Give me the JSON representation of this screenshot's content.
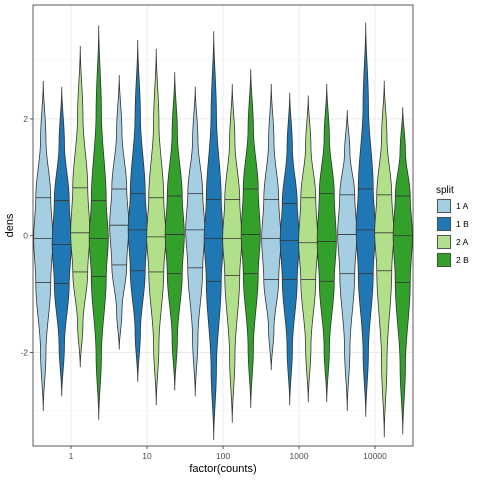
{
  "chart_data": {
    "type": "violin",
    "title": "",
    "xlabel": "factor(counts)",
    "ylabel": "dens",
    "categories": [
      "1",
      "10",
      "100",
      "1000",
      "10000"
    ],
    "ylim": [
      -3.6,
      3.95
    ],
    "y_ticks": [
      -2,
      0,
      2
    ],
    "grid": true,
    "legend": {
      "title": "split",
      "position": "right"
    },
    "series": [
      {
        "name": "1 A",
        "color": "#a6cee3",
        "stats": [
          {
            "min": -3.0,
            "q1": -0.8,
            "median": -0.05,
            "q3": 0.65,
            "max": 2.65
          },
          {
            "min": -1.95,
            "q1": -0.5,
            "median": 0.18,
            "q3": 0.8,
            "max": 2.75
          },
          {
            "min": -2.75,
            "q1": -0.55,
            "median": 0.1,
            "q3": 0.72,
            "max": 2.55
          },
          {
            "min": -2.3,
            "q1": -0.75,
            "median": -0.05,
            "q3": 0.62,
            "max": 2.6
          },
          {
            "min": -3.0,
            "q1": -0.65,
            "median": 0.02,
            "q3": 0.7,
            "max": 2.15
          }
        ]
      },
      {
        "name": "1 B",
        "color": "#1f78b4",
        "stats": [
          {
            "min": -2.75,
            "q1": -0.82,
            "median": -0.15,
            "q3": 0.6,
            "max": 2.55
          },
          {
            "min": -2.5,
            "q1": -0.6,
            "median": 0.1,
            "q3": 0.72,
            "max": 3.35
          },
          {
            "min": -3.5,
            "q1": -0.78,
            "median": -0.05,
            "q3": 0.62,
            "max": 3.5
          },
          {
            "min": -2.9,
            "q1": -0.75,
            "median": -0.08,
            "q3": 0.55,
            "max": 2.45
          },
          {
            "min": -3.1,
            "q1": -0.65,
            "median": 0.1,
            "q3": 0.8,
            "max": 3.65
          }
        ]
      },
      {
        "name": "2 A",
        "color": "#b2df8a",
        "stats": [
          {
            "min": -2.25,
            "q1": -0.62,
            "median": 0.05,
            "q3": 0.82,
            "max": 3.25
          },
          {
            "min": -2.9,
            "q1": -0.62,
            "median": -0.02,
            "q3": 0.65,
            "max": 3.2
          },
          {
            "min": -3.2,
            "q1": -0.68,
            "median": -0.05,
            "q3": 0.62,
            "max": 2.6
          },
          {
            "min": -2.85,
            "q1": -0.75,
            "median": -0.12,
            "q3": 0.65,
            "max": 2.4
          },
          {
            "min": -3.45,
            "q1": -0.6,
            "median": 0.05,
            "q3": 0.7,
            "max": 2.65
          }
        ]
      },
      {
        "name": "2 B",
        "color": "#33a02c",
        "stats": [
          {
            "min": -3.15,
            "q1": -0.7,
            "median": -0.05,
            "q3": 0.6,
            "max": 3.6
          },
          {
            "min": -2.65,
            "q1": -0.65,
            "median": 0.02,
            "q3": 0.68,
            "max": 2.8
          },
          {
            "min": -2.95,
            "q1": -0.65,
            "median": 0.02,
            "q3": 0.8,
            "max": 2.85
          },
          {
            "min": -2.85,
            "q1": -0.78,
            "median": -0.1,
            "q3": 0.72,
            "max": 2.6
          },
          {
            "min": -3.4,
            "q1": -0.8,
            "median": 0.0,
            "q3": 0.68,
            "max": 2.2
          }
        ]
      }
    ]
  }
}
